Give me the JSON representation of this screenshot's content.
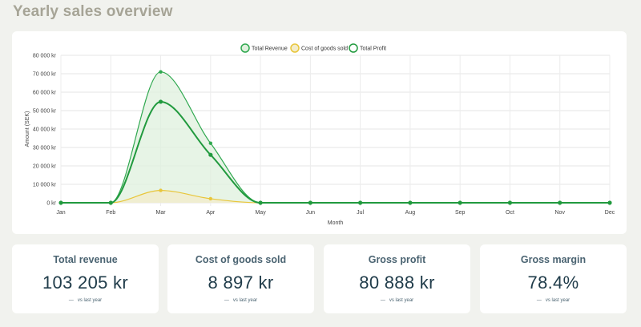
{
  "page": {
    "title": "Yearly sales overview"
  },
  "chart_data": {
    "type": "line",
    "x": [
      "Jan",
      "Feb",
      "Mar",
      "Apr",
      "May",
      "Jun",
      "Jul",
      "Aug",
      "Sep",
      "Oct",
      "Nov",
      "Dec"
    ],
    "series": [
      {
        "name": "Total Revenue",
        "color": "#2fa84f",
        "fill": "#dff0dd",
        "values": [
          0,
          0,
          71000,
          32300,
          0,
          0,
          0,
          0,
          0,
          0,
          0,
          0
        ]
      },
      {
        "name": "Cost of goods sold",
        "color": "#e8c63b",
        "fill": "#f3ecc9",
        "values": [
          0,
          0,
          6700,
          2200,
          0,
          0,
          0,
          0,
          0,
          0,
          0,
          0
        ]
      },
      {
        "name": "Total Profit",
        "color": "#219a3e",
        "fill": "",
        "values": [
          0,
          0,
          54800,
          26000,
          0,
          0,
          0,
          0,
          0,
          0,
          0,
          0
        ]
      }
    ],
    "xlabel": "Month",
    "ylabel": "Amount (SEK)",
    "ylim": [
      0,
      80000
    ],
    "yticks": [
      "0 kr",
      "10 000 kr",
      "20 000 kr",
      "30 000 kr",
      "40 000 kr",
      "50 000 kr",
      "60 000 kr",
      "70 000 kr",
      "80 000 kr"
    ],
    "grid": true,
    "legend": "top-center"
  },
  "kpis": [
    {
      "title": "Total revenue",
      "value": "103 205 kr",
      "delta": "—",
      "note": "vs last year"
    },
    {
      "title": "Cost of goods sold",
      "value": "8 897 kr",
      "delta": "—",
      "note": "vs last year"
    },
    {
      "title": "Gross profit",
      "value": "80 888 kr",
      "delta": "—",
      "note": "vs last year"
    },
    {
      "title": "Gross margin",
      "value": "78.4%",
      "delta": "—",
      "note": "vs last year"
    }
  ]
}
